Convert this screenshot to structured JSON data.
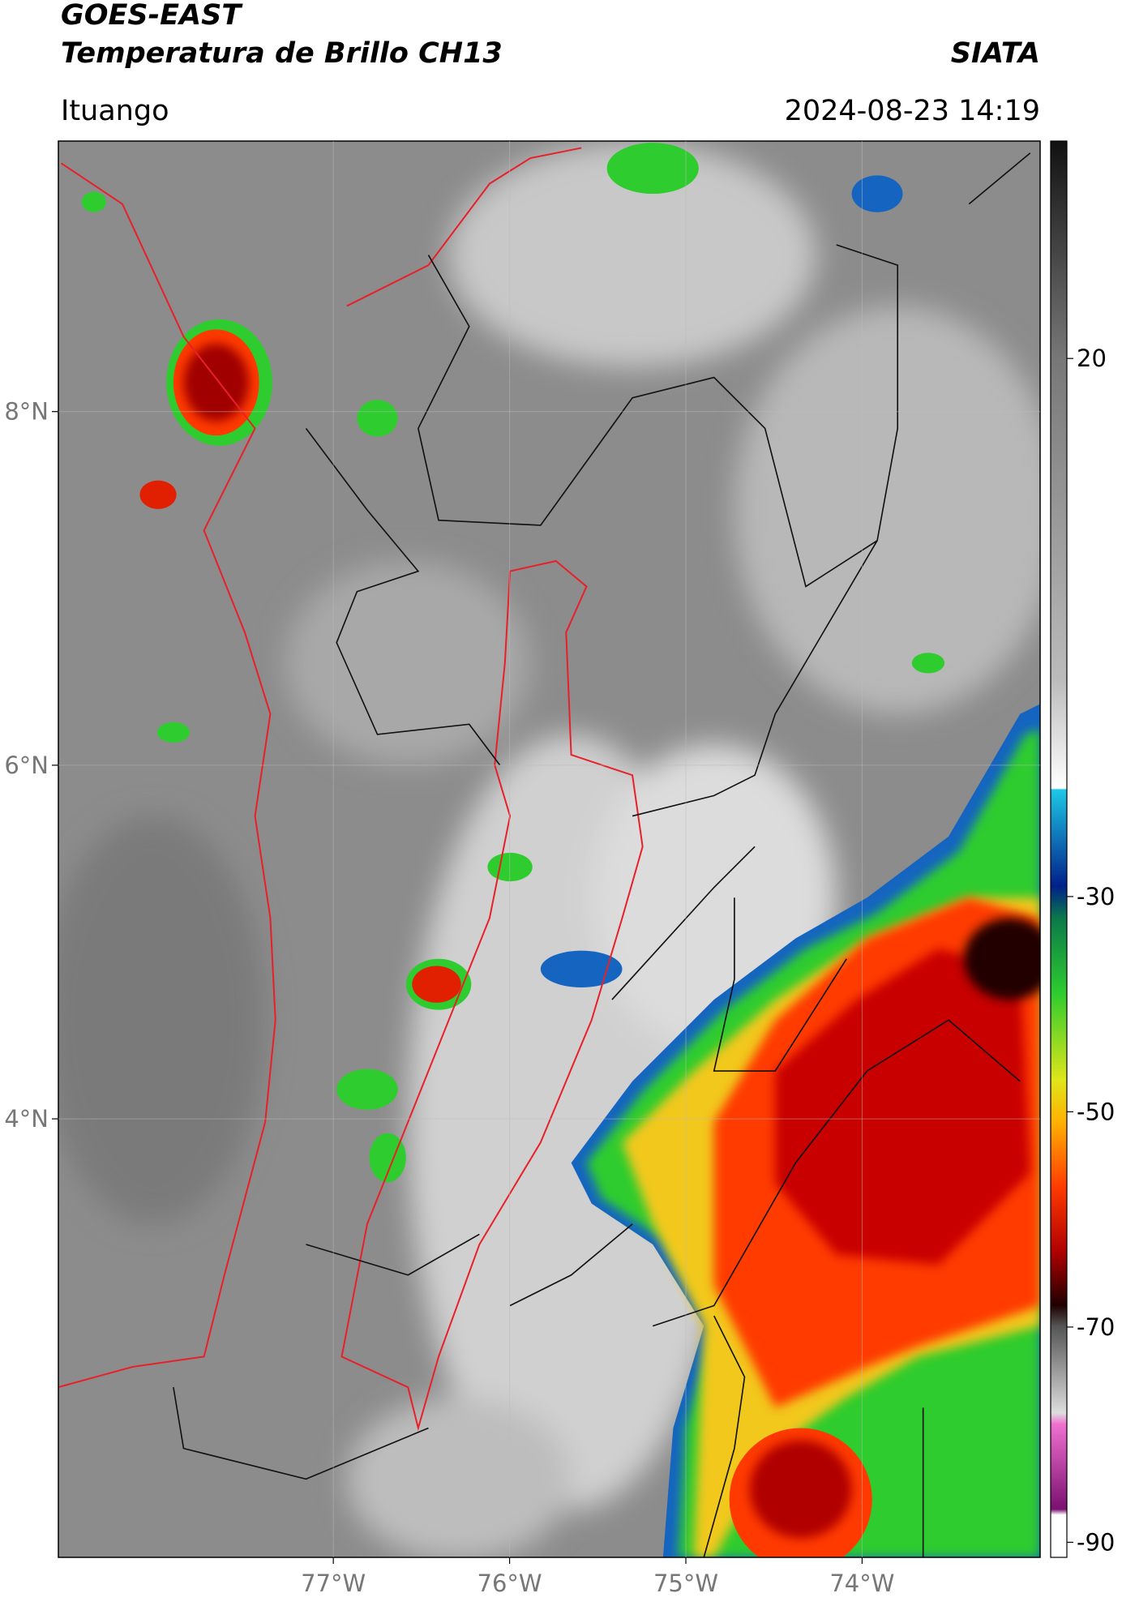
{
  "header": {
    "title": "GOES-EAST",
    "subtitle": "Temperatura de Brillo CH13",
    "org": "SIATA",
    "location": "Ituango",
    "datetime": "2024-08-23 14:19"
  },
  "map": {
    "xlim": [
      -78.56,
      -72.99
    ],
    "ylim": [
      1.52,
      9.53
    ],
    "xticks": [
      {
        "value": -77,
        "label": "77°W"
      },
      {
        "value": -76,
        "label": "76°W"
      },
      {
        "value": -75,
        "label": "75°W"
      },
      {
        "value": -74,
        "label": "74°W"
      }
    ],
    "yticks": [
      {
        "value": 8,
        "label": "8°N"
      },
      {
        "value": 6,
        "label": "6°N"
      },
      {
        "value": 4,
        "label": "4°N"
      }
    ],
    "grid": true
  },
  "colorbar": {
    "lim": [
      -91.4,
      40.2
    ],
    "ticks": [
      20,
      -30,
      -50,
      -70,
      -90
    ]
  }
}
